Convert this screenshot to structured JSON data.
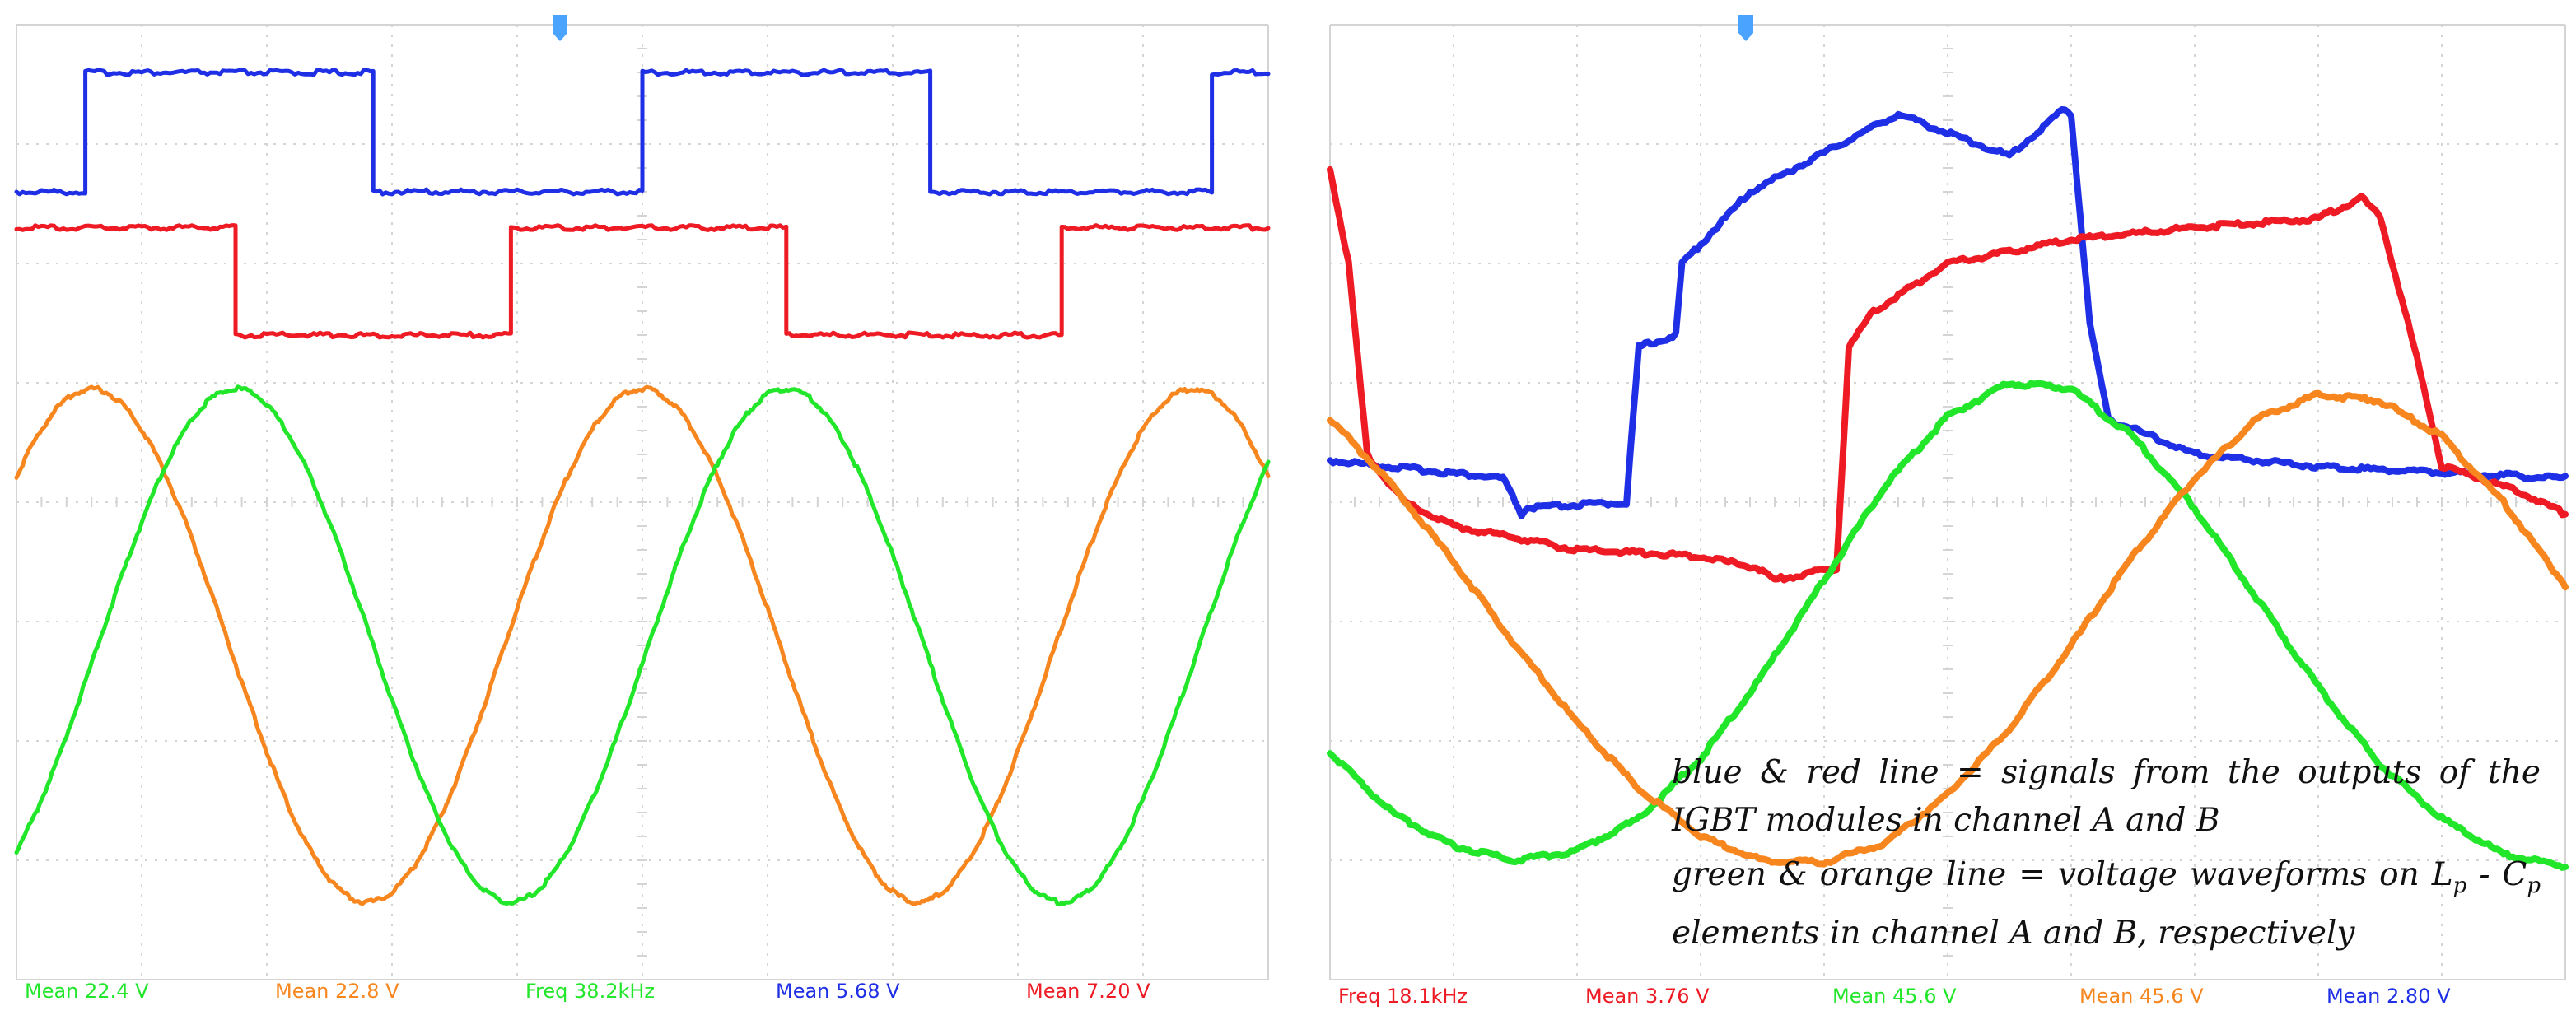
{
  "colors": {
    "blue": "#1f2fe6",
    "red": "#ee1b24",
    "green": "#22e62a",
    "orange": "#f7861e",
    "grid": "#d4d4d4"
  },
  "annotation": {
    "line1_text": "blue & red line = signals from the outputs of the IGBT modules in channel A and B",
    "line2_lead": "green  & orange  line = voltage waveforms on",
    "line2_sym1": "L",
    "line2_sub1": "p",
    "line2_dash": " - ",
    "line2_sym2": "C",
    "line2_sub2": "p",
    "line2_tail": "elements in channel A and B, respectively"
  },
  "chart_data": [
    {
      "type": "line",
      "panel": "left",
      "grid": true,
      "divisions": {
        "x": 10,
        "y": 8
      },
      "readouts": [
        {
          "text": "Mean 22.4 V",
          "color": "green"
        },
        {
          "text": "Mean 22.8 V",
          "color": "orange"
        },
        {
          "text": "Freq 38.2kHz",
          "color": "green"
        },
        {
          "text": "Mean 5.68 V",
          "color": "blue"
        },
        {
          "text": "Mean 7.20 V",
          "color": "red"
        }
      ],
      "series": [
        {
          "color": "blue",
          "shape": "square",
          "x": [
            0,
            0.55,
            0.55,
            2.85,
            2.85,
            5.0,
            5.0,
            7.3,
            7.3,
            9.55,
            9.55,
            10.0
          ],
          "y": [
            6.6,
            6.6,
            7.6,
            7.6,
            6.6,
            6.6,
            7.6,
            7.6,
            6.6,
            6.6,
            7.6,
            7.6
          ]
        },
        {
          "color": "red",
          "shape": "square",
          "x": [
            0,
            1.75,
            1.75,
            3.95,
            3.95,
            6.15,
            6.15,
            8.35,
            8.35,
            10.0
          ],
          "y": [
            6.3,
            6.3,
            5.4,
            5.4,
            6.3,
            6.3,
            5.4,
            5.4,
            6.3,
            6.3
          ]
        },
        {
          "color": "orange",
          "shape": "sine",
          "period": 4.4,
          "phase_peak_x": 0.6,
          "amplitude": 2.15,
          "offset": 2.8
        },
        {
          "color": "green",
          "shape": "sine",
          "period": 4.4,
          "phase_peak_x": 1.75,
          "amplitude": 2.15,
          "offset": 2.8
        }
      ]
    },
    {
      "type": "line",
      "panel": "right",
      "grid": true,
      "divisions": {
        "x": 10,
        "y": 8
      },
      "readouts": [
        {
          "text": "Freq 18.1kHz",
          "color": "red"
        },
        {
          "text": "Mean 3.76 V",
          "color": "red"
        },
        {
          "text": "Mean 45.6 V",
          "color": "green"
        },
        {
          "text": "Mean 45.6 V",
          "color": "orange"
        },
        {
          "text": "Mean 2.80 V",
          "color": "blue"
        }
      ],
      "series": [
        {
          "color": "blue",
          "x": [
            0,
            1.4,
            1.55,
            1.6,
            2.4,
            2.5,
            2.8,
            2.85,
            3.4,
            4.5,
            4.6,
            5.5,
            5.95,
            6.0,
            6.15,
            6.3,
            7.0,
            8.0,
            9.0,
            10.0
          ],
          "y": [
            4.35,
            4.2,
            3.9,
            3.95,
            4.0,
            5.3,
            5.4,
            6.0,
            6.6,
            7.2,
            7.25,
            6.9,
            7.3,
            7.25,
            5.5,
            4.7,
            4.4,
            4.3,
            4.25,
            4.2
          ]
        },
        {
          "color": "red",
          "x": [
            0,
            0.15,
            0.3,
            0.6,
            1.0,
            2.0,
            3.0,
            3.45,
            3.6,
            4.1,
            4.2,
            4.4,
            5.0,
            6.0,
            7.0,
            8.0,
            8.35,
            8.5,
            8.8,
            9.0,
            9.3,
            9.6,
            10.0
          ],
          "y": [
            6.8,
            6.0,
            4.4,
            4.0,
            3.8,
            3.6,
            3.55,
            3.45,
            3.35,
            3.45,
            5.3,
            5.6,
            6.0,
            6.2,
            6.3,
            6.38,
            6.55,
            6.4,
            5.2,
            4.3,
            4.2,
            4.1,
            3.9
          ]
        },
        {
          "color": "green",
          "x": [
            0,
            0.5,
            1.0,
            1.5,
            2.0,
            2.5,
            3.0,
            3.5,
            4.0,
            4.5,
            5.0,
            5.5,
            6.0,
            6.5,
            7.0,
            7.5,
            8.0,
            8.5,
            9.0,
            9.5,
            10.0
          ],
          "y": [
            1.9,
            1.4,
            1.12,
            1.0,
            1.08,
            1.35,
            1.85,
            2.55,
            3.35,
            4.15,
            4.72,
            5.0,
            4.95,
            4.55,
            3.95,
            3.2,
            2.45,
            1.8,
            1.35,
            1.05,
            0.95
          ]
        },
        {
          "color": "orange",
          "x": [
            0,
            0.5,
            1.0,
            1.5,
            2.0,
            2.5,
            3.0,
            3.5,
            4.0,
            4.5,
            5.0,
            5.5,
            6.0,
            6.5,
            7.0,
            7.5,
            8.0,
            8.5,
            9.0,
            9.5,
            10.0
          ],
          "y": [
            4.7,
            4.15,
            3.5,
            2.8,
            2.15,
            1.6,
            1.2,
            1.0,
            0.98,
            1.15,
            1.55,
            2.1,
            2.8,
            3.55,
            4.2,
            4.7,
            4.9,
            4.85,
            4.55,
            4.0,
            3.3
          ]
        }
      ]
    }
  ]
}
